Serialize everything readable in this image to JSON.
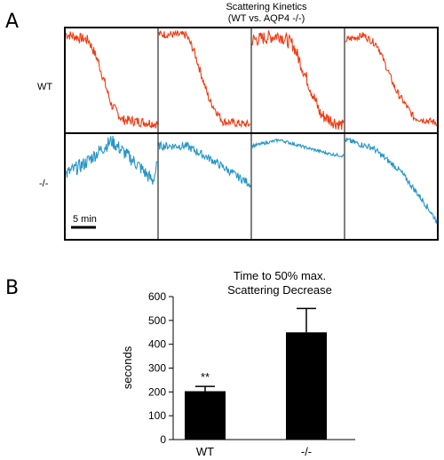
{
  "panel_a": {
    "letter": "A",
    "title_line1": "Scattering Kinetics",
    "title_line2": "(WT vs. AQP4 -/-)",
    "row_labels": [
      "WT",
      "-/-"
    ],
    "scale_bar_label": "5 min",
    "colors": {
      "wt": "#f03a12",
      "ko": "#2596c7"
    }
  },
  "panel_b": {
    "letter": "B",
    "title_line1": "Time to 50% max.",
    "title_line2": "Scattering Decrease"
  },
  "chart_data": [
    {
      "type": "line",
      "title": "Scattering Kinetics (WT vs. AQP4 -/-)",
      "note": "2 rows x 4 columns of normalized scattering traces; no numeric axes shown",
      "rows": [
        "WT",
        "-/-"
      ],
      "traces_per_row": 4
    },
    {
      "type": "bar",
      "title": "Time to 50% max. Scattering Decrease",
      "xlabel": "",
      "ylabel": "seconds",
      "categories": [
        "WT",
        "-/-"
      ],
      "values": [
        203,
        450
      ],
      "errors": [
        20,
        100
      ],
      "significance": [
        "**",
        ""
      ],
      "ylim": [
        0,
        600
      ],
      "yticks": [
        0,
        100,
        200,
        300,
        400,
        500,
        600
      ],
      "bar_color": "#000000"
    }
  ]
}
